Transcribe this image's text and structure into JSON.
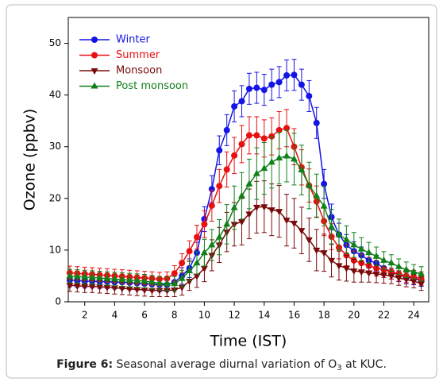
{
  "chart_data": {
    "type": "line",
    "xlabel": "Time (IST)",
    "ylabel": "Ozone (ppbv)",
    "xlim": [
      0.9,
      25
    ],
    "ylim": [
      0,
      55
    ],
    "xticks": [
      2,
      4,
      6,
      8,
      10,
      12,
      14,
      16,
      18,
      20,
      22,
      24
    ],
    "yticks": [
      0,
      10,
      20,
      30,
      40,
      50
    ],
    "legend": "upper left",
    "x": [
      1,
      1.5,
      2,
      2.5,
      3,
      3.5,
      4,
      4.5,
      5,
      5.5,
      6,
      6.5,
      7,
      7.5,
      8,
      8.5,
      9,
      9.5,
      10,
      10.5,
      11,
      11.5,
      12,
      12.5,
      13,
      13.5,
      14,
      14.5,
      15,
      15.5,
      16,
      16.5,
      17,
      17.5,
      18,
      18.5,
      19,
      19.5,
      20,
      20.5,
      21,
      21.5,
      22,
      22.5,
      23,
      23.5,
      24,
      24.5
    ],
    "series": [
      {
        "name": "Winter",
        "color": "#1414e6",
        "marker": "circle",
        "values": [
          4.2,
          4.1,
          4.0,
          4.0,
          3.9,
          3.9,
          3.8,
          3.8,
          3.7,
          3.6,
          3.5,
          3.4,
          3.3,
          3.3,
          3.8,
          5,
          6.5,
          9.5,
          16,
          21.8,
          29.3,
          33.2,
          37.8,
          38.8,
          41.2,
          41.4,
          41,
          42,
          42.5,
          43.8,
          43.9,
          42,
          39.8,
          34.6,
          22.8,
          16.4,
          13,
          11,
          9.8,
          9,
          8,
          7.5,
          6.5,
          5.8,
          5.2,
          4.8,
          4.5,
          4.2
        ],
        "errors": [
          1.3,
          1.3,
          1.3,
          1.3,
          1.3,
          1.3,
          1.3,
          1.3,
          1.3,
          1.3,
          1.3,
          1.3,
          1.3,
          1.3,
          1.4,
          1.6,
          1.8,
          2,
          2.4,
          2.6,
          2.8,
          3,
          3,
          3,
          3,
          3,
          3,
          3,
          3,
          3,
          3,
          3,
          3,
          3,
          2.8,
          2.5,
          2.2,
          2,
          1.8,
          1.6,
          1.5,
          1.5,
          1.4,
          1.4,
          1.3,
          1.3,
          1.2,
          1.2
        ]
      },
      {
        "name": "Summer",
        "color": "#e81010",
        "marker": "circle",
        "values": [
          5.6,
          5.5,
          5.4,
          5.3,
          5.2,
          5.1,
          5,
          4.9,
          4.8,
          4.7,
          4.6,
          4.5,
          4.4,
          4.5,
          5.5,
          7.5,
          9.8,
          12.5,
          15,
          18.6,
          22.4,
          25.6,
          28.3,
          30.5,
          32.2,
          32.2,
          31.6,
          32,
          33.2,
          33.6,
          30,
          26,
          22.5,
          19.4,
          15.6,
          12.6,
          10.5,
          9,
          8,
          7.5,
          7,
          6.5,
          6.2,
          5.8,
          5.4,
          5,
          4.8,
          4.5
        ],
        "errors": [
          1.3,
          1.3,
          1.3,
          1.3,
          1.3,
          1.3,
          1.3,
          1.3,
          1.3,
          1.3,
          1.3,
          1.3,
          1.3,
          1.3,
          1.5,
          1.8,
          2,
          2.3,
          2.6,
          3,
          3.2,
          3.4,
          3.5,
          3.6,
          3.6,
          3.6,
          3.6,
          3.6,
          3.6,
          3.6,
          3.5,
          3.4,
          3.2,
          3,
          2.8,
          2.5,
          2.2,
          2,
          1.8,
          1.7,
          1.6,
          1.5,
          1.5,
          1.4,
          1.4,
          1.3,
          1.3,
          1.3
        ]
      },
      {
        "name": "Monsoon",
        "color": "#7a0a0a",
        "marker": "triangle-down",
        "values": [
          3.2,
          3.1,
          3.0,
          3.0,
          2.9,
          2.8,
          2.7,
          2.6,
          2.5,
          2.4,
          2.3,
          2.2,
          2.2,
          2.2,
          2.3,
          2.8,
          4,
          5,
          6.5,
          9,
          11,
          13.5,
          15,
          15.5,
          17,
          18.3,
          18.4,
          17.8,
          17.5,
          15.8,
          15.2,
          13.8,
          12,
          10,
          9.5,
          8,
          7,
          6.5,
          6,
          5.8,
          5.6,
          5.4,
          5.2,
          5,
          4.6,
          4.3,
          4,
          3.5
        ],
        "errors": [
          1.2,
          1.2,
          1.2,
          1.2,
          1.2,
          1.2,
          1.2,
          1.2,
          1.2,
          1.2,
          1.2,
          1.2,
          1.2,
          1.2,
          1.3,
          1.5,
          1.8,
          2.2,
          2.6,
          3,
          3.4,
          3.8,
          4.2,
          4.5,
          4.8,
          5,
          5,
          5,
          5,
          5,
          4.8,
          4.5,
          4.2,
          4,
          3.6,
          3.2,
          2.8,
          2.5,
          2.2,
          2,
          1.8,
          1.7,
          1.6,
          1.5,
          1.4,
          1.4,
          1.3,
          1.3
        ]
      },
      {
        "name": "Post monsoon",
        "color": "#11801a",
        "marker": "triangle-up",
        "values": [
          5.0,
          4.9,
          4.8,
          4.7,
          4.6,
          4.5,
          4.4,
          4.3,
          4.2,
          4.1,
          4.0,
          3.8,
          3.6,
          3.5,
          3.5,
          4.5,
          6,
          7.5,
          9.5,
          11,
          12.5,
          15,
          18.2,
          20.5,
          22.8,
          24.8,
          25.8,
          27,
          27.8,
          28.2,
          27.6,
          25.5,
          22.5,
          20.5,
          18.5,
          14.5,
          13,
          12,
          11,
          10.2,
          9.5,
          8.8,
          8,
          7.5,
          6.8,
          6.2,
          5.8,
          5.4
        ],
        "errors": [
          1.3,
          1.3,
          1.3,
          1.3,
          1.3,
          1.3,
          1.3,
          1.3,
          1.3,
          1.3,
          1.3,
          1.3,
          1.3,
          1.3,
          1.4,
          1.6,
          1.9,
          2.2,
          2.6,
          3,
          3.4,
          3.8,
          4.2,
          4.5,
          4.8,
          5,
          5,
          5,
          5,
          5,
          5,
          4.8,
          4.5,
          4.2,
          3.8,
          3.4,
          3,
          2.7,
          2.4,
          2.2,
          2,
          1.8,
          1.7,
          1.6,
          1.5,
          1.5,
          1.4,
          1.4
        ]
      }
    ]
  },
  "caption": {
    "label": "Figure 6:",
    "text": "Seasonal average diurnal variation of O",
    "subscript": "3",
    "rest": " at KUC."
  }
}
